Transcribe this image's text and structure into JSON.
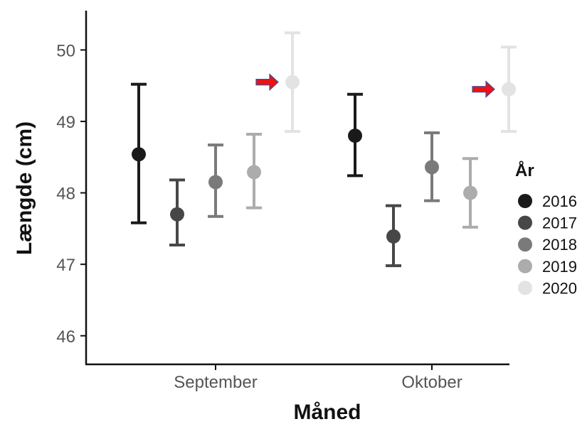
{
  "chart_data": {
    "type": "scatter",
    "subtype": "point-errorbar",
    "title": "",
    "xlabel": "Måned",
    "ylabel": "Længde (cm)",
    "categories": [
      "September",
      "Oktober"
    ],
    "ylim": [
      45.6,
      50.55
    ],
    "yticks": [
      "46",
      "47",
      "48",
      "49",
      "50"
    ],
    "grid": false,
    "legend": {
      "title": "År",
      "position": "right"
    },
    "series": [
      {
        "name": "2016",
        "color": "#1a1a1a",
        "values": [
          48.54,
          48.8
        ],
        "lower": [
          47.58,
          48.24
        ],
        "upper": [
          49.52,
          49.38
        ]
      },
      {
        "name": "2017",
        "color": "#474747",
        "values": [
          47.7,
          47.39
        ],
        "lower": [
          47.27,
          46.98
        ],
        "upper": [
          48.18,
          47.82
        ]
      },
      {
        "name": "2018",
        "color": "#7a7a7a",
        "values": [
          48.15,
          48.36
        ],
        "lower": [
          47.67,
          47.89
        ],
        "upper": [
          48.67,
          48.84
        ]
      },
      {
        "name": "2019",
        "color": "#acacac",
        "values": [
          48.29,
          48.0
        ],
        "lower": [
          47.79,
          47.52
        ],
        "upper": [
          48.82,
          48.48
        ]
      },
      {
        "name": "2020",
        "color": "#e3e3e3",
        "values": [
          49.55,
          49.45
        ],
        "lower": [
          48.86,
          48.86
        ],
        "upper": [
          50.24,
          50.04
        ]
      }
    ],
    "annotations": [
      {
        "type": "arrow",
        "color": "#ee1111",
        "category": "September",
        "series": "2020"
      },
      {
        "type": "arrow",
        "color": "#ee1111",
        "category": "Oktober",
        "series": "2020"
      }
    ]
  }
}
